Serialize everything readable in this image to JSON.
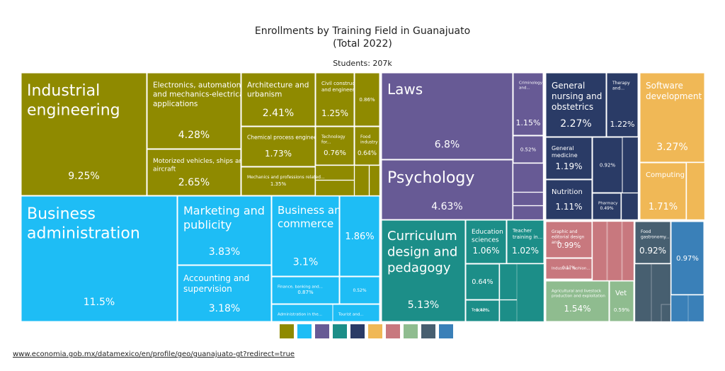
{
  "chart_data": {
    "type": "treemap",
    "title": "Enrollments by Training Field in Guanajuato",
    "title_line2": "(Total 2022)",
    "subtitle": "Students: 207k",
    "legend_placement": "bottom",
    "groups": [
      {
        "color": "#8f8a00",
        "items": [
          {
            "name": "Industrial engineering",
            "value": 9.25,
            "label": "9.25%"
          },
          {
            "name": "Electronics, automation and mechanics-electrical applications",
            "value": 4.28,
            "label": "4.28%"
          },
          {
            "name": "Motorized vehicles, ships and aircraft",
            "value": 2.65,
            "label": "2.65%"
          },
          {
            "name": "Architecture and urbanism",
            "value": 2.41,
            "label": "2.41%"
          },
          {
            "name": "Civil construction and engineering",
            "value": 1.25,
            "label": "1.25%"
          },
          {
            "name": "",
            "value": 0.86,
            "label": "0.86%"
          },
          {
            "name": "Chemical process engineering",
            "value": 1.73,
            "label": "1.73%"
          },
          {
            "name": "Technology for...",
            "value": 0.76,
            "label": "0.76%"
          },
          {
            "name": "Food industry",
            "value": 0.64,
            "label": "0.64%"
          },
          {
            "name": "Mechanics and professions related...",
            "value": 1.35,
            "label": "1.35%"
          }
        ]
      },
      {
        "color": "#1ebdf5",
        "items": [
          {
            "name": "Business administration",
            "value": 11.5,
            "label": "11.5%"
          },
          {
            "name": "Marketing and publicity",
            "value": 3.83,
            "label": "3.83%"
          },
          {
            "name": "Accounting and supervision",
            "value": 3.18,
            "label": "3.18%"
          },
          {
            "name": "Business and commerce",
            "value": 3.1,
            "label": "3.1%"
          },
          {
            "name": "",
            "value": 1.86,
            "label": "1.86%"
          },
          {
            "name": "Finance, banking and...",
            "value": 0.87,
            "label": "0.87%"
          },
          {
            "name": "",
            "value": 0.52,
            "label": "0.52%"
          },
          {
            "name": "Administration in the...",
            "value": null,
            "label": ""
          },
          {
            "name": "Tourist and...",
            "value": null,
            "label": ""
          }
        ]
      },
      {
        "color": "#675a95",
        "items": [
          {
            "name": "Laws",
            "value": 6.8,
            "label": "6.8%"
          },
          {
            "name": "Criminology and...",
            "value": 1.15,
            "label": "1.15%"
          },
          {
            "name": "",
            "value": 0.52,
            "label": "0.52%"
          },
          {
            "name": "Psychology",
            "value": 4.63,
            "label": "4.63%"
          }
        ]
      },
      {
        "color": "#1c8e88",
        "items": [
          {
            "name": "Curriculum design and pedagogy",
            "value": 5.13,
            "label": "5.13%"
          },
          {
            "name": "Education sciences",
            "value": 1.06,
            "label": "1.06%"
          },
          {
            "name": "Teacher training in...",
            "value": 1.02,
            "label": "1.02%"
          },
          {
            "name": "",
            "value": 0.64,
            "label": "0.64%"
          },
          {
            "name": "Teacher...",
            "value": 0.47,
            "label": "0.47%"
          }
        ]
      },
      {
        "color": "#2a3b66",
        "items": [
          {
            "name": "General nursing and obstetrics",
            "value": 2.27,
            "label": "2.27%"
          },
          {
            "name": "Therapy and...",
            "value": 1.22,
            "label": "1.22%"
          },
          {
            "name": "General medicine",
            "value": 1.19,
            "label": "1.19%"
          },
          {
            "name": "",
            "value": 0.92,
            "label": "0.92%"
          },
          {
            "name": "Nutrition",
            "value": 1.11,
            "label": "1.11%"
          },
          {
            "name": "Pharmacy",
            "value": 0.49,
            "label": "0.49%"
          }
        ]
      },
      {
        "color": "#f0b856",
        "items": [
          {
            "name": "Software development",
            "value": 3.27,
            "label": "3.27%"
          },
          {
            "name": "Computing",
            "value": 1.71,
            "label": "1.71%"
          }
        ]
      },
      {
        "color": "#c8787e",
        "items": [
          {
            "name": "Graphic and editorial design and...",
            "value": 0.99,
            "label": "0.99%"
          },
          {
            "name": "Industrial, fashion...",
            "value": 0.17,
            "label": "0.17%"
          }
        ]
      },
      {
        "color": "#8fbc8f",
        "items": [
          {
            "name": "Agricultural and livestock production and exploitation",
            "value": 1.54,
            "label": "1.54%"
          },
          {
            "name": "Vet",
            "value": 0.59,
            "label": "0.59%"
          }
        ]
      },
      {
        "color": "#475f70",
        "items": [
          {
            "name": "Food gastronomy...",
            "value": 0.92,
            "label": "0.92%"
          }
        ]
      },
      {
        "color": "#3a80b8",
        "items": [
          {
            "name": "",
            "value": 0.97,
            "label": "0.97%"
          }
        ]
      }
    ],
    "legend": [
      "#8f8a00",
      "#1ebdf5",
      "#675a95",
      "#1c8e88",
      "#2a3b66",
      "#f0b856",
      "#c8787e",
      "#8fbc8f",
      "#475f70",
      "#3a80b8"
    ]
  },
  "source_link": "www.economia.gob.mx/datamexico/en/profile/geo/guanajuato-gt?redirect=true"
}
